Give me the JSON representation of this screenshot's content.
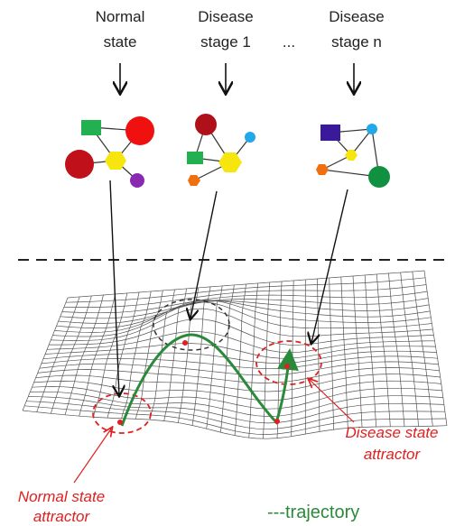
{
  "stages": [
    {
      "lines": [
        "Normal",
        "state"
      ]
    },
    {
      "lines": [
        "Disease",
        "stage 1"
      ]
    },
    {
      "lines": [
        "..."
      ]
    },
    {
      "lines": [
        "Disease",
        "stage n"
      ]
    }
  ],
  "annotations": {
    "normal_attractor": [
      "Normal state",
      "attractor"
    ],
    "disease_attractor": [
      "Disease state",
      "attractor"
    ],
    "trajectory": "---trajectory"
  }
}
